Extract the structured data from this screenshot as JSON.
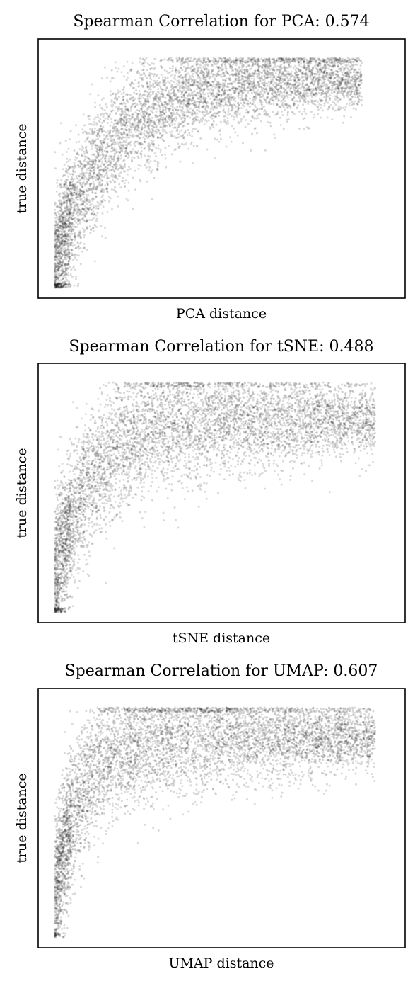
{
  "chart_data": [
    {
      "type": "scatter",
      "title": "Spearman Correlation for PCA: 0.574",
      "xlabel": "PCA distance",
      "ylabel": "true distance",
      "xticks": "hidden",
      "yticks": "hidden",
      "grid": false,
      "point_color": "#000000",
      "point_opacity": 0.15,
      "spearman": 0.574,
      "xlim": [
        0,
        1
      ],
      "ylim": [
        0,
        1
      ],
      "point_count": 6000,
      "trend": {
        "saturation_level": 0.9,
        "rise_rate": 6.0,
        "spread": 0.14,
        "max_x": 0.92
      }
    },
    {
      "type": "scatter",
      "title": "Spearman Correlation for tSNE: 0.488",
      "xlabel": "tSNE distance",
      "ylabel": "true distance",
      "xticks": "hidden",
      "yticks": "hidden",
      "grid": false,
      "point_color": "#000000",
      "point_opacity": 0.15,
      "spearman": 0.488,
      "xlim": [
        0,
        1
      ],
      "ylim": [
        0,
        1
      ],
      "point_count": 6000,
      "trend": {
        "saturation_level": 0.83,
        "rise_rate": 9.0,
        "spread": 0.16,
        "max_x": 0.96
      }
    },
    {
      "type": "scatter",
      "title": "Spearman Correlation for UMAP: 0.607",
      "xlabel": "UMAP distance",
      "ylabel": "true distance",
      "xticks": "hidden",
      "yticks": "hidden",
      "grid": false,
      "point_color": "#000000",
      "point_opacity": 0.15,
      "spearman": 0.607,
      "xlim": [
        0,
        1
      ],
      "ylim": [
        0,
        1
      ],
      "point_count": 6000,
      "trend": {
        "saturation_level": 0.86,
        "rise_rate": 12.0,
        "spread": 0.15,
        "max_x": 0.96
      }
    }
  ]
}
